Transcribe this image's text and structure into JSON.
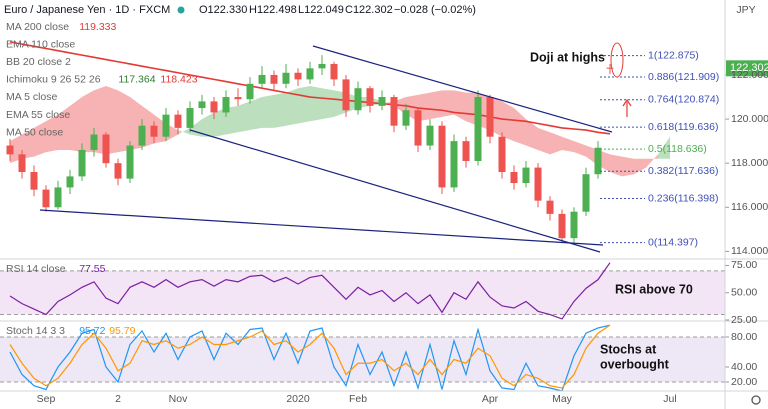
{
  "header": {
    "title": "Euro / Japanese Yen · 1D · FXCM",
    "open": "O122.330",
    "high": "H122.498",
    "low": "L122.049",
    "close": "C122.302",
    "change": "−0.028 (−0.02%)",
    "currency": "JPY"
  },
  "chart_data": [
    {
      "type": "candlestick",
      "categories": [
        null,
        null,
        null,
        "Sep",
        null,
        null,
        null,
        null,
        null,
        "2",
        null,
        null,
        null,
        null,
        "Nov",
        null,
        null,
        null,
        null,
        null,
        null,
        null,
        null,
        null,
        "2020",
        null,
        null,
        null,
        null,
        "Feb",
        null,
        null,
        null,
        null,
        null,
        null,
        null,
        null,
        null,
        null,
        "Apr",
        null,
        null,
        null,
        null,
        null,
        "May",
        null,
        null,
        null,
        null,
        null,
        null,
        null,
        null,
        "Jul"
      ],
      "open": [
        118.8,
        118.4,
        117.6,
        116.8,
        116.0,
        116.9,
        117.4,
        118.6,
        119.3,
        118.0,
        117.3,
        118.8,
        119.7,
        119.2,
        120.2,
        119.6,
        120.5,
        120.8,
        120.3,
        121.0,
        120.9,
        121.6,
        122.0,
        121.6,
        122.1,
        121.8,
        122.3,
        122.5,
        121.8,
        120.4,
        121.4,
        120.6,
        121.0,
        119.7,
        120.4,
        118.8,
        119.7,
        116.9,
        119.0,
        118.1,
        121.0,
        119.2,
        117.6,
        117.1,
        117.8,
        116.3,
        115.7,
        114.6,
        115.8,
        117.5,
        122.33,
        null,
        null,
        null,
        null,
        null
      ],
      "high": [
        119.1,
        118.6,
        117.9,
        117.0,
        117.2,
        117.7,
        118.9,
        119.6,
        119.4,
        118.2,
        119.0,
        120.0,
        119.9,
        120.5,
        120.4,
        120.8,
        121.1,
        121.0,
        121.3,
        121.4,
        121.9,
        122.4,
        122.2,
        122.5,
        122.3,
        122.6,
        122.9,
        122.6,
        122.0,
        121.7,
        121.5,
        121.3,
        121.1,
        120.7,
        120.5,
        120.0,
        119.9,
        119.3,
        119.2,
        121.3,
        121.1,
        119.4,
        117.9,
        118.1,
        118.0,
        116.5,
        115.9,
        116.0,
        117.8,
        119.0,
        122.498,
        null,
        null,
        null,
        null,
        null
      ],
      "low": [
        118.1,
        117.3,
        116.5,
        115.8,
        115.9,
        116.6,
        117.2,
        118.3,
        117.8,
        117.0,
        117.1,
        118.6,
        118.9,
        119.0,
        119.3,
        119.4,
        120.2,
        120.0,
        120.1,
        120.6,
        120.7,
        121.4,
        121.3,
        121.4,
        121.5,
        121.6,
        122.0,
        121.5,
        120.1,
        120.2,
        120.3,
        120.4,
        119.4,
        119.5,
        118.5,
        118.6,
        116.6,
        116.7,
        117.8,
        117.9,
        118.9,
        117.3,
        116.8,
        116.9,
        116.0,
        115.4,
        114.4,
        114.4,
        115.6,
        117.3,
        122.049,
        null,
        null,
        null,
        null,
        null
      ],
      "close": [
        118.4,
        117.6,
        116.8,
        116.0,
        116.9,
        117.4,
        118.6,
        119.3,
        118.0,
        117.3,
        118.8,
        119.7,
        119.2,
        120.2,
        119.6,
        120.5,
        120.8,
        120.3,
        121.0,
        120.9,
        121.6,
        122.0,
        121.6,
        122.1,
        121.8,
        122.3,
        122.5,
        121.8,
        120.4,
        121.4,
        120.6,
        121.0,
        119.7,
        120.4,
        118.8,
        119.7,
        116.9,
        119.0,
        118.1,
        121.0,
        119.2,
        117.6,
        117.1,
        117.8,
        116.3,
        115.7,
        114.6,
        115.8,
        117.5,
        118.7,
        122.302,
        null,
        null,
        null,
        null,
        null
      ],
      "up_color": "#4caf50",
      "down_color": "#ef5350",
      "series": [
        {
          "name": "MA 200 close",
          "color": "#e53935",
          "values": [
            123.5,
            123.4,
            123.3,
            123.2,
            123.1,
            123.0,
            122.9,
            122.8,
            122.7,
            122.6,
            122.5,
            122.4,
            122.3,
            122.2,
            122.1,
            122.0,
            121.9,
            121.8,
            121.7,
            121.6,
            121.5,
            121.4,
            121.3,
            121.2,
            121.1,
            121.0,
            120.95,
            120.9,
            120.85,
            120.8,
            120.75,
            120.7,
            120.65,
            120.6,
            120.5,
            120.45,
            120.4,
            120.3,
            120.25,
            120.2,
            120.1,
            120.0,
            119.95,
            119.9,
            119.8,
            119.7,
            119.6,
            119.55,
            119.5,
            119.4,
            119.333,
            null,
            null,
            null,
            null,
            null
          ]
        }
      ],
      "cloud": {
        "span_a": [
          118.0,
          118.2,
          118.3,
          118.5,
          118.6,
          118.6,
          118.5,
          118.5,
          118.4,
          118.5,
          118.6,
          118.7,
          118.9,
          119.0,
          119.3,
          119.6,
          120.0,
          120.3,
          120.5,
          120.6,
          120.8,
          121.0,
          121.1,
          121.2,
          121.4,
          121.5,
          121.4,
          121.3,
          121.2,
          121.0,
          121.0,
          120.8,
          120.6,
          120.2,
          119.9,
          120.0,
          120.1,
          120.2,
          119.9,
          119.7,
          119.5,
          119.2,
          119.0,
          118.8,
          118.6,
          118.4,
          118.6,
          118.5,
          118.3,
          117.9,
          117.6,
          117.4,
          117.5,
          117.8,
          118.4,
          119.2
        ],
        "span_b": [
          119.0,
          119.3,
          119.6,
          119.9,
          120.2,
          120.6,
          121.0,
          121.3,
          121.5,
          121.3,
          121.0,
          120.6,
          120.2,
          119.8,
          119.5,
          119.3,
          119.2,
          119.2,
          119.3,
          119.4,
          119.5,
          119.6,
          119.6,
          119.7,
          119.8,
          119.9,
          120.0,
          120.1,
          120.3,
          120.5,
          120.6,
          120.7,
          120.8,
          121.0,
          121.1,
          121.2,
          121.3,
          121.3,
          121.2,
          121.2,
          121.0,
          120.8,
          120.5,
          120.0,
          119.6,
          119.4,
          119.2,
          119.0,
          118.8,
          118.6,
          118.4,
          118.3,
          118.2,
          118.2,
          118.2,
          118.2
        ],
        "up_color": "#a5d6a7",
        "down_color": "#f49a9a"
      },
      "indicators": [
        {
          "name": "MA 200 close",
          "value": 119.333
        },
        {
          "name": "EMA 110 close"
        },
        {
          "name": "BB 20 close 2"
        },
        {
          "name": "Ichimoku 9 26 52 26",
          "values": [
            117.364,
            118.423
          ]
        },
        {
          "name": "MA 5 close"
        },
        {
          "name": "EMA 55 close"
        },
        {
          "name": "MA 50 close"
        }
      ],
      "fib_levels": [
        {
          "label": "1(122.875)",
          "value": 122.875
        },
        {
          "label": "0.886(121.909)",
          "value": 121.909
        },
        {
          "label": "0.764(120.874)",
          "value": 120.874
        },
        {
          "label": "0.618(119.636)",
          "value": 119.636
        },
        {
          "label": "0.5(118.636)",
          "value": 118.636,
          "color": "#4caf50"
        },
        {
          "label": "0.382(117.636)",
          "value": 117.636
        },
        {
          "label": "0.236(116.398)",
          "value": 116.398
        },
        {
          "label": "0(114.397)",
          "value": 114.397
        }
      ],
      "last_price": {
        "value": 122.302,
        "label": "122.302"
      },
      "annotations": [
        "Doji at highs"
      ],
      "ylim": [
        113.7,
        125.4
      ],
      "yticks": [
        {
          "value": 114,
          "label": "114.000"
        },
        {
          "value": 116,
          "label": "116.000"
        },
        {
          "value": 118,
          "label": "118.000"
        },
        {
          "value": 120,
          "label": "120.000"
        },
        {
          "value": 122,
          "label": "122.000"
        }
      ]
    },
    {
      "type": "line",
      "title": "RSI 14 close",
      "series": [
        {
          "name": "RSI",
          "color": "#7b1fa2",
          "values": [
            47,
            40,
            35,
            30,
            42,
            48,
            55,
            60,
            45,
            40,
            55,
            60,
            55,
            62,
            55,
            60,
            62,
            56,
            62,
            60,
            65,
            66,
            60,
            64,
            58,
            64,
            66,
            55,
            44,
            55,
            48,
            52,
            42,
            50,
            40,
            48,
            32,
            50,
            44,
            60,
            46,
            38,
            36,
            42,
            33,
            30,
            26,
            42,
            54,
            62,
            77.55
          ]
        }
      ],
      "bands": [
        30,
        70
      ],
      "band_color": "#f3e5f5",
      "annotations": [
        "RSI above 70"
      ],
      "ylim": [
        25,
        80
      ],
      "yticks": [
        {
          "value": 25,
          "label": "25.00"
        },
        {
          "value": 50,
          "label": "50.00"
        },
        {
          "value": 75,
          "label": "75.00"
        }
      ]
    },
    {
      "type": "line",
      "title": "Stoch 14 3 3",
      "series": [
        {
          "name": "%K",
          "color": "#2196f3",
          "values": [
            60,
            30,
            15,
            10,
            40,
            60,
            85,
            90,
            40,
            20,
            70,
            88,
            60,
            85,
            50,
            80,
            88,
            50,
            85,
            70,
            90,
            92,
            50,
            85,
            45,
            88,
            92,
            40,
            15,
            70,
            30,
            60,
            15,
            60,
            12,
            70,
            10,
            75,
            30,
            90,
            35,
            12,
            10,
            45,
            15,
            12,
            8,
            55,
            85,
            92,
            95.72
          ]
        },
        {
          "name": "%D",
          "color": "#ff9800",
          "values": [
            70,
            45,
            25,
            15,
            25,
            45,
            70,
            85,
            65,
            35,
            45,
            75,
            70,
            75,
            65,
            70,
            80,
            70,
            70,
            75,
            80,
            88,
            70,
            75,
            60,
            70,
            85,
            65,
            30,
            45,
            45,
            50,
            35,
            45,
            30,
            50,
            30,
            50,
            45,
            65,
            55,
            25,
            15,
            30,
            25,
            15,
            12,
            30,
            65,
            85,
            95.79
          ]
        }
      ],
      "bands": [
        20,
        80
      ],
      "band_color": "#ede7f6",
      "annotations": [
        "Stochs at",
        "overbought"
      ],
      "ylim": [
        8,
        100
      ],
      "yticks": [
        {
          "value": 20,
          "label": "20.00"
        },
        {
          "value": 40,
          "label": "40.00"
        },
        {
          "value": 80,
          "label": "80.00"
        }
      ]
    }
  ]
}
